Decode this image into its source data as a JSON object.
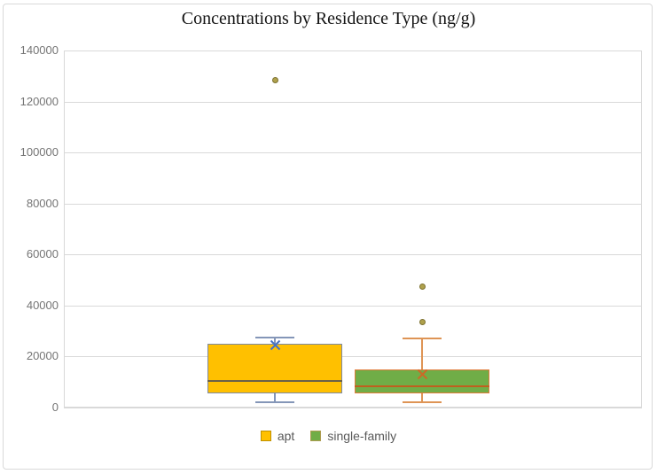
{
  "chart_data": {
    "type": "box",
    "title": "Concentrations by Residence Type (ng/g)",
    "xlabel": "",
    "ylabel": "",
    "ylim": [
      0,
      140000
    ],
    "ytick_interval": 20000,
    "yticks": [
      0,
      20000,
      40000,
      60000,
      80000,
      100000,
      120000,
      140000
    ],
    "grid": true,
    "legend_position": "bottom",
    "outlier_fill": "#AFA14C",
    "outlier_border": "#7D7231",
    "gridline_color": "#D9D9D9",
    "series": [
      {
        "name": "apt",
        "fill_color": "#FFC000",
        "border_color": "#7E8AA0",
        "whisker_color": "#8496B8",
        "median_color": "#6A6148",
        "mean_marker_color": "#4472C4",
        "min": 2000,
        "q1": 5500,
        "median": 10500,
        "q3": 25000,
        "max": 27500,
        "mean": 24500,
        "outliers": [
          128500
        ]
      },
      {
        "name": "single-family",
        "fill_color": "#70AD47",
        "border_color": "#E07B39",
        "whisker_color": "#DE9455",
        "median_color": "#C05F1E",
        "mean_marker_color": "#CB6A28",
        "min": 2000,
        "q1": 5500,
        "median": 8500,
        "q3": 15000,
        "max": 27000,
        "mean": 13000,
        "outliers": [
          33500,
          47500
        ]
      }
    ]
  },
  "legend": {
    "items": [
      {
        "label": "apt",
        "fill": "#FFC000",
        "border": "#BF9000"
      },
      {
        "label": "single-family",
        "fill": "#70AD47",
        "border": "#AD9C4F"
      }
    ]
  }
}
